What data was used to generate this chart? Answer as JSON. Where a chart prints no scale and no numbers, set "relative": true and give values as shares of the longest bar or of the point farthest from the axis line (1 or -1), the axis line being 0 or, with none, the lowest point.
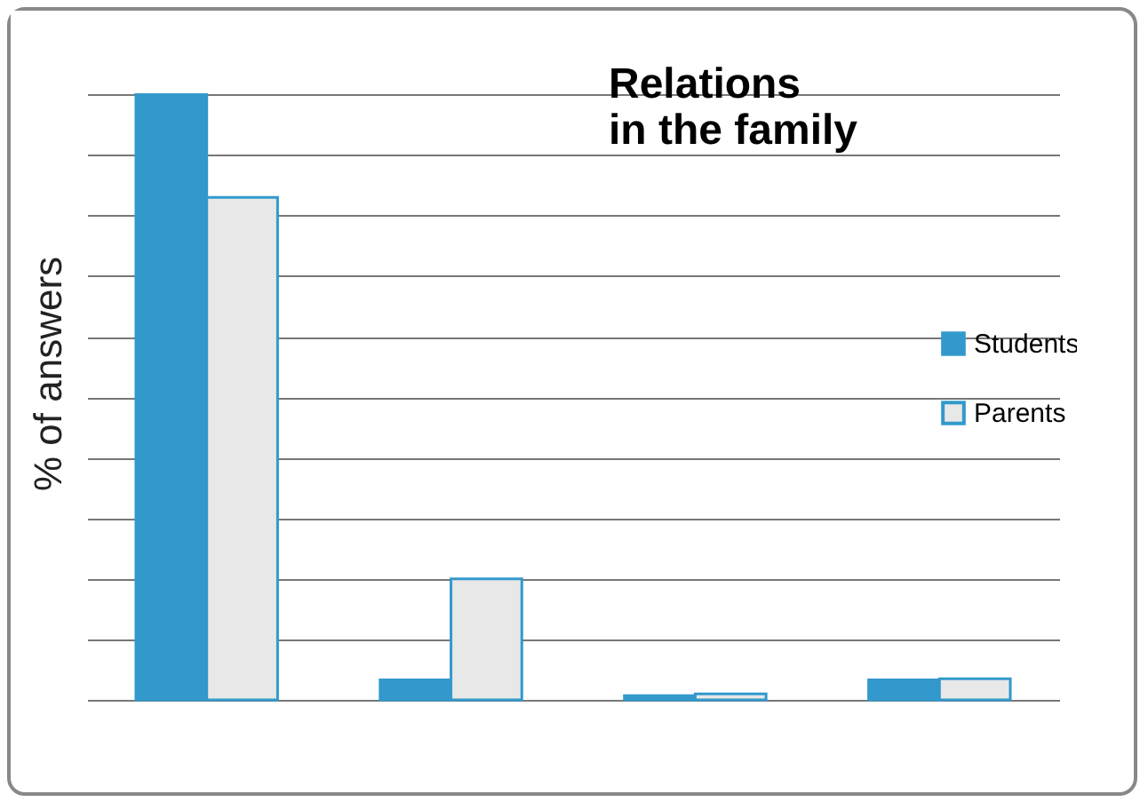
{
  "chart_data": {
    "type": "bar",
    "title": "Relations\nin the family",
    "ylabel": "% of answers",
    "relative": true,
    "categories": [
      null,
      null,
      null,
      null
    ],
    "series": [
      {
        "name": "Students",
        "color": "#3399cc",
        "values": [
          1,
          0.033,
          0.007,
          0.033
        ]
      },
      {
        "name": "Parents",
        "color": "#e8e8e8",
        "values": [
          0.83,
          0.2,
          0.01,
          0.035
        ]
      }
    ],
    "grid": "y",
    "legend": "right"
  }
}
